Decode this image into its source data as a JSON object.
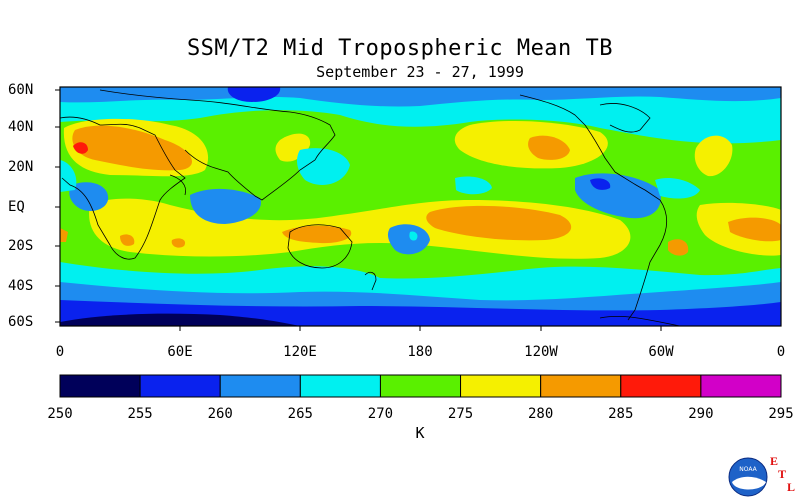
{
  "title": "SSM/T2 Mid Tropospheric Mean TB",
  "subtitle": "September 23 - 27, 1999",
  "lat_labels": [
    "60N",
    "40N",
    "20N",
    "EQ",
    "20S",
    "40S",
    "60S"
  ],
  "lon_labels": [
    "0",
    "60E",
    "120E",
    "180",
    "120W",
    "60W",
    "0"
  ],
  "colorbar": {
    "levels": [
      "250",
      "255",
      "260",
      "265",
      "270",
      "275",
      "280",
      "285",
      "290",
      "295"
    ],
    "colors": [
      "#00005a",
      "#0a22ee",
      "#1e8cf0",
      "#00f0f0",
      "#5af000",
      "#f5f000",
      "#f59a00",
      "#ff1a0a",
      "#d200c8"
    ],
    "unit": "K"
  },
  "logo": {
    "text": "NOAA",
    "letters": [
      "E",
      "T",
      "L"
    ]
  }
}
